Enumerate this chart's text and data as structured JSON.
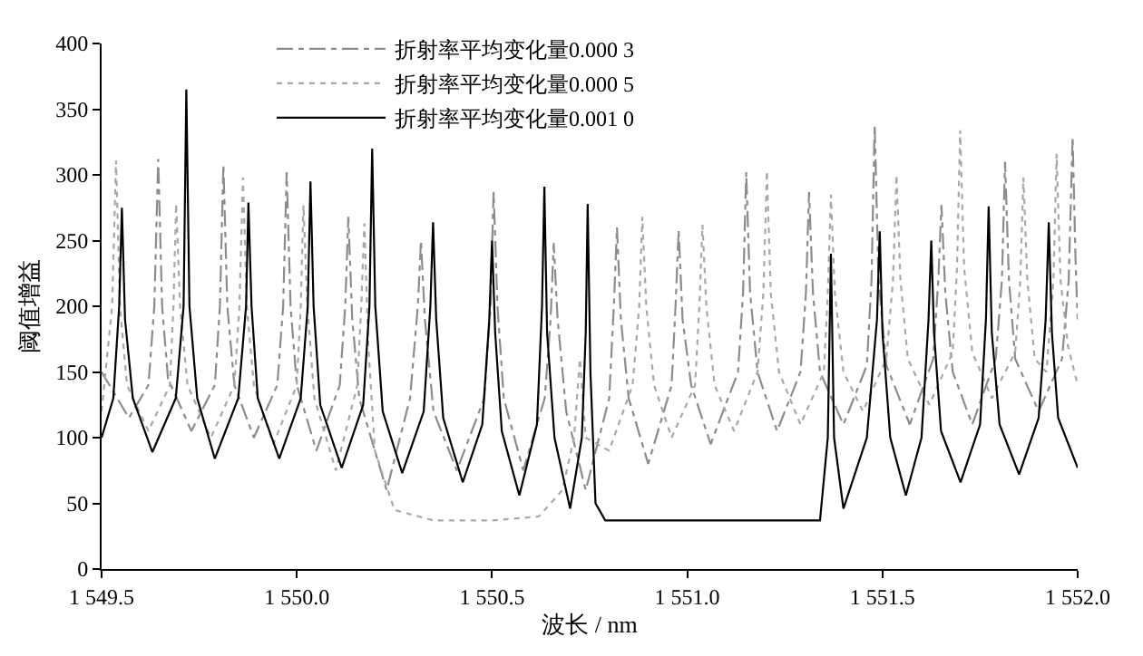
{
  "chart_data": {
    "type": "line",
    "xlabel": "波长 / nm",
    "ylabel": "阈值增益",
    "xlim": [
      1549.5,
      1552.0
    ],
    "xticks": [
      {
        "value": 1549.5,
        "label": "1 549.5"
      },
      {
        "value": 1550.0,
        "label": "1 550.0"
      },
      {
        "value": 1550.5,
        "label": "1 550.5"
      },
      {
        "value": 1551.0,
        "label": "1 551.0"
      },
      {
        "value": 1551.5,
        "label": "1 551.5"
      },
      {
        "value": 1552.0,
        "label": "1 552.0"
      }
    ],
    "ylim": [
      0,
      400
    ],
    "yticks": [
      0,
      50,
      100,
      150,
      200,
      250,
      300,
      350,
      400
    ],
    "legend": "top left",
    "marker": "none",
    "series": [
      {
        "name": "折射率平均变化量0.000 3",
        "color": "#8c8c8c",
        "line_style": "dashdot",
        "x": [
          1549.5,
          1549.57,
          1549.62,
          1549.635,
          1549.645,
          1549.655,
          1549.67,
          1549.73,
          1549.79,
          1549.803,
          1549.812,
          1549.822,
          1549.84,
          1549.89,
          1549.95,
          1549.965,
          1549.974,
          1549.984,
          1550.0,
          1550.05,
          1550.11,
          1550.124,
          1550.132,
          1550.142,
          1550.16,
          1550.23,
          1550.29,
          1550.31,
          1550.318,
          1550.328,
          1550.35,
          1550.41,
          1550.48,
          1550.496,
          1550.504,
          1550.514,
          1550.53,
          1550.58,
          1550.635,
          1550.65,
          1550.658,
          1550.668,
          1550.69,
          1550.74,
          1550.8,
          1550.812,
          1550.82,
          1550.83,
          1550.85,
          1550.9,
          1550.96,
          1550.97,
          1550.978,
          1550.988,
          1551.01,
          1551.06,
          1551.13,
          1551.143,
          1551.151,
          1551.161,
          1551.18,
          1551.23,
          1551.29,
          1551.304,
          1551.312,
          1551.322,
          1551.34,
          1551.4,
          1551.46,
          1551.472,
          1551.48,
          1551.49,
          1551.51,
          1551.57,
          1551.63,
          1551.643,
          1551.651,
          1551.661,
          1551.68,
          1551.73,
          1551.79,
          1551.806,
          1551.814,
          1551.824,
          1551.84,
          1551.9,
          1551.96,
          1551.977,
          1551.987,
          1551.995,
          1552.0
        ],
        "values": [
          150,
          115,
          140,
          200,
          312,
          200,
          145,
          105,
          140,
          200,
          308,
          200,
          140,
          100,
          140,
          200,
          302,
          200,
          140,
          90,
          140,
          200,
          268,
          190,
          130,
          60,
          130,
          200,
          250,
          190,
          120,
          75,
          130,
          200,
          287,
          200,
          130,
          75,
          130,
          190,
          248,
          190,
          120,
          60,
          130,
          200,
          260,
          190,
          130,
          80,
          140,
          200,
          258,
          190,
          140,
          95,
          150,
          210,
          302,
          210,
          150,
          105,
          150,
          210,
          287,
          210,
          150,
          110,
          155,
          220,
          338,
          220,
          155,
          110,
          160,
          220,
          277,
          210,
          150,
          110,
          160,
          220,
          310,
          220,
          160,
          120,
          160,
          220,
          329,
          230,
          190
        ]
      },
      {
        "name": "折射率平均变化量0.000 5",
        "color": "#a8a8a8",
        "line_style": "dotted",
        "x": [
          1549.5,
          1549.527,
          1549.537,
          1549.547,
          1549.565,
          1549.62,
          1549.675,
          1549.684,
          1549.691,
          1549.701,
          1549.72,
          1549.78,
          1549.84,
          1549.853,
          1549.862,
          1549.872,
          1549.89,
          1549.94,
          1550.0,
          1550.01,
          1550.017,
          1550.027,
          1550.045,
          1550.1,
          1550.155,
          1550.165,
          1550.173,
          1550.183,
          1550.2,
          1550.25,
          1550.35,
          1550.5,
          1550.62,
          1550.68,
          1550.71,
          1550.725,
          1550.74,
          1550.8,
          1550.86,
          1550.877,
          1550.885,
          1550.895,
          1550.915,
          1550.96,
          1551.02,
          1551.031,
          1551.039,
          1551.049,
          1551.07,
          1551.12,
          1551.18,
          1551.195,
          1551.204,
          1551.214,
          1551.235,
          1551.29,
          1551.35,
          1551.36,
          1551.368,
          1551.378,
          1551.4,
          1551.45,
          1551.51,
          1551.527,
          1551.536,
          1551.546,
          1551.565,
          1551.62,
          1551.68,
          1551.691,
          1551.699,
          1551.709,
          1551.73,
          1551.78,
          1551.84,
          1551.853,
          1551.861,
          1551.871,
          1551.89,
          1551.92,
          1551.938,
          1551.946,
          1551.956,
          1551.975,
          1552.0
        ],
        "values": [
          120,
          200,
          311,
          200,
          140,
          105,
          140,
          200,
          278,
          200,
          140,
          100,
          140,
          200,
          298,
          200,
          140,
          95,
          140,
          200,
          277,
          200,
          130,
          75,
          140,
          200,
          263,
          170,
          90,
          45,
          37,
          37,
          40,
          60,
          100,
          160,
          100,
          90,
          140,
          200,
          268,
          200,
          140,
          100,
          140,
          200,
          262,
          200,
          140,
          105,
          150,
          210,
          303,
          210,
          150,
          110,
          150,
          210,
          285,
          210,
          150,
          120,
          160,
          220,
          300,
          220,
          160,
          125,
          165,
          230,
          334,
          230,
          165,
          130,
          165,
          220,
          298,
          220,
          160,
          150,
          220,
          316,
          220,
          170,
          140
        ]
      },
      {
        "name": "折射率平均变化量0.001 0",
        "color": "#000000",
        "line_style": "solid",
        "x": [
          1549.5,
          1549.53,
          1549.545,
          1549.552,
          1549.56,
          1549.58,
          1549.63,
          1549.69,
          1549.71,
          1549.717,
          1549.725,
          1549.745,
          1549.79,
          1549.85,
          1549.87,
          1549.876,
          1549.884,
          1549.9,
          1549.955,
          1550.01,
          1550.028,
          1550.035,
          1550.043,
          1550.06,
          1550.115,
          1550.17,
          1550.186,
          1550.193,
          1550.201,
          1550.22,
          1550.27,
          1550.325,
          1550.342,
          1550.349,
          1550.357,
          1550.375,
          1550.425,
          1550.475,
          1550.493,
          1550.5,
          1550.508,
          1550.525,
          1550.57,
          1550.615,
          1550.628,
          1550.634,
          1550.641,
          1550.66,
          1550.7,
          1550.73,
          1550.74,
          1550.745,
          1550.752,
          1550.765,
          1550.79,
          1551.34,
          1551.36,
          1551.368,
          1551.376,
          1551.4,
          1551.46,
          1551.486,
          1551.493,
          1551.5,
          1551.52,
          1551.56,
          1551.6,
          1551.618,
          1551.625,
          1551.632,
          1551.65,
          1551.7,
          1551.75,
          1551.765,
          1551.772,
          1551.78,
          1551.8,
          1551.85,
          1551.9,
          1551.918,
          1551.926,
          1551.934,
          1551.95,
          1552.0
        ],
        "values": [
          100,
          130,
          200,
          275,
          190,
          130,
          89,
          130,
          200,
          365,
          200,
          130,
          84,
          130,
          200,
          279,
          200,
          130,
          84,
          130,
          200,
          295,
          200,
          125,
          77,
          125,
          200,
          320,
          200,
          120,
          73,
          120,
          200,
          264,
          190,
          115,
          66,
          110,
          190,
          250,
          180,
          105,
          56,
          110,
          200,
          291,
          180,
          100,
          46,
          100,
          180,
          278,
          150,
          50,
          37,
          37,
          100,
          240,
          100,
          46,
          100,
          190,
          257,
          180,
          100,
          56,
          100,
          190,
          250,
          180,
          105,
          66,
          110,
          190,
          276,
          180,
          110,
          72,
          115,
          190,
          264,
          180,
          115,
          77
        ]
      }
    ]
  }
}
